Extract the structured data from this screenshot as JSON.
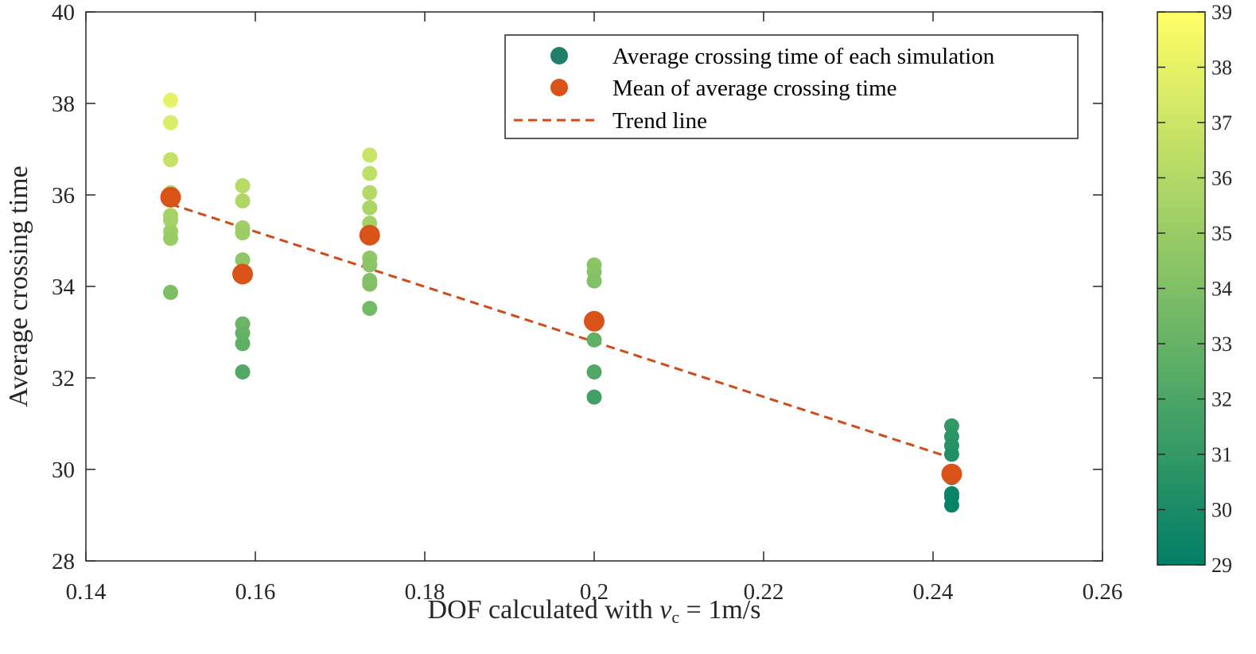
{
  "chart_data": {
    "type": "scatter",
    "title": "",
    "xlabel_prefix": "DOF calculated with ",
    "xlabel_var": "v",
    "xlabel_sub": "c",
    "xlabel_suffix": " = 1m/s",
    "ylabel": "Average crossing time",
    "xlim": [
      0.14,
      0.26
    ],
    "ylim": [
      28,
      40
    ],
    "xticks": [
      0.14,
      0.16,
      0.18,
      0.2,
      0.22,
      0.24,
      0.26
    ],
    "xtick_labels": [
      "0.14",
      "0.16",
      "0.18",
      "0.2",
      "0.22",
      "0.24",
      "0.26"
    ],
    "yticks": [
      28,
      30,
      32,
      34,
      36,
      38,
      40
    ],
    "ytick_labels": [
      "28",
      "30",
      "32",
      "34",
      "36",
      "38",
      "40"
    ],
    "grid": false,
    "legend_position": "top-right",
    "legend": [
      {
        "label": "Average crossing time of each simulation",
        "kind": "marker",
        "color": "#1f7f6a"
      },
      {
        "label": "Mean of average crossing time",
        "kind": "marker",
        "color": "#d95319"
      },
      {
        "label": "Trend line",
        "kind": "dashed-line",
        "color": "#d14a1a"
      }
    ],
    "series": [
      {
        "name": "Average crossing time of each simulation",
        "colored_by_value": true,
        "points": [
          {
            "x": 0.15,
            "y": 38.07
          },
          {
            "x": 0.15,
            "y": 37.58
          },
          {
            "x": 0.15,
            "y": 36.77
          },
          {
            "x": 0.15,
            "y": 36.05
          },
          {
            "x": 0.15,
            "y": 35.55
          },
          {
            "x": 0.15,
            "y": 35.45
          },
          {
            "x": 0.15,
            "y": 35.2
          },
          {
            "x": 0.15,
            "y": 35.05
          },
          {
            "x": 0.15,
            "y": 33.87
          },
          {
            "x": 0.1585,
            "y": 36.2
          },
          {
            "x": 0.1585,
            "y": 35.87
          },
          {
            "x": 0.1585,
            "y": 35.28
          },
          {
            "x": 0.1585,
            "y": 35.17
          },
          {
            "x": 0.1585,
            "y": 34.58
          },
          {
            "x": 0.1585,
            "y": 33.18
          },
          {
            "x": 0.1585,
            "y": 32.98
          },
          {
            "x": 0.1585,
            "y": 32.75
          },
          {
            "x": 0.1585,
            "y": 32.13
          },
          {
            "x": 0.1735,
            "y": 36.87
          },
          {
            "x": 0.1735,
            "y": 36.47
          },
          {
            "x": 0.1735,
            "y": 36.05
          },
          {
            "x": 0.1735,
            "y": 35.72
          },
          {
            "x": 0.1735,
            "y": 35.38
          },
          {
            "x": 0.1735,
            "y": 34.62
          },
          {
            "x": 0.1735,
            "y": 34.47
          },
          {
            "x": 0.1735,
            "y": 34.13
          },
          {
            "x": 0.1735,
            "y": 34.05
          },
          {
            "x": 0.1735,
            "y": 33.52
          },
          {
            "x": 0.2,
            "y": 34.47
          },
          {
            "x": 0.2,
            "y": 34.32
          },
          {
            "x": 0.2,
            "y": 34.12
          },
          {
            "x": 0.2,
            "y": 32.83
          },
          {
            "x": 0.2,
            "y": 32.13
          },
          {
            "x": 0.2,
            "y": 31.58
          },
          {
            "x": 0.2422,
            "y": 30.95
          },
          {
            "x": 0.2422,
            "y": 30.72
          },
          {
            "x": 0.2422,
            "y": 30.52
          },
          {
            "x": 0.2422,
            "y": 30.33
          },
          {
            "x": 0.2422,
            "y": 29.82
          },
          {
            "x": 0.2422,
            "y": 29.47
          },
          {
            "x": 0.2422,
            "y": 29.4
          },
          {
            "x": 0.2422,
            "y": 29.22
          }
        ]
      },
      {
        "name": "Mean of average crossing time",
        "color": "#d95319",
        "points": [
          {
            "x": 0.15,
            "y": 35.95
          },
          {
            "x": 0.1585,
            "y": 34.27
          },
          {
            "x": 0.1735,
            "y": 35.12
          },
          {
            "x": 0.2,
            "y": 33.24
          },
          {
            "x": 0.2422,
            "y": 29.9
          }
        ]
      },
      {
        "name": "Trend line",
        "type": "line",
        "style": "dashed",
        "color": "#d14a1a",
        "points": [
          {
            "x": 0.15,
            "y": 35.8
          },
          {
            "x": 0.2422,
            "y": 30.25
          }
        ]
      }
    ],
    "colorbar": {
      "range": [
        29,
        39
      ],
      "ticks": [
        29,
        30,
        31,
        32,
        33,
        34,
        35,
        36,
        37,
        38,
        39
      ],
      "tick_labels": [
        "29",
        "30",
        "31",
        "32",
        "33",
        "34",
        "35",
        "36",
        "37",
        "38",
        "39"
      ],
      "colormap": [
        "#007f66",
        "#ffff66"
      ]
    }
  }
}
